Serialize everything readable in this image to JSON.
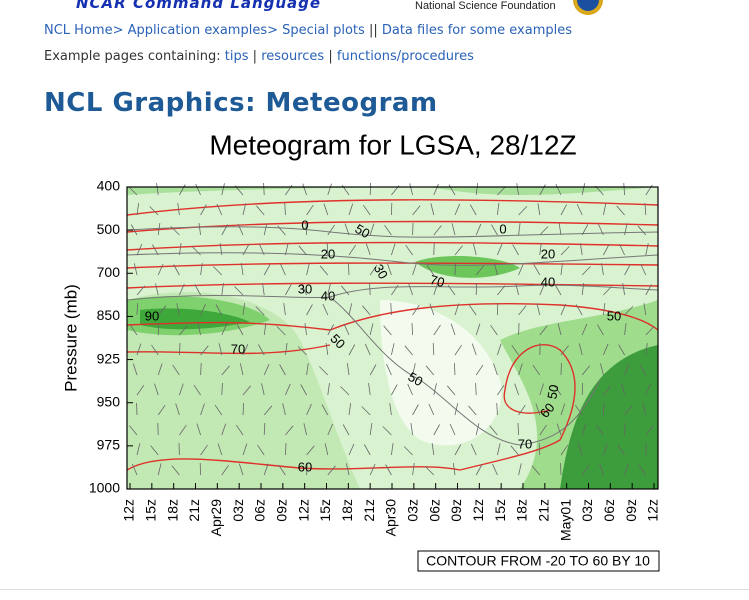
{
  "header": {
    "brand": "NCAR Command Language",
    "sponsor": "National Science Foundation"
  },
  "nav": {
    "links": [
      "NCL Home>",
      "Application examples>",
      "Special plots"
    ],
    "separator": "||",
    "data_link": "Data files for some examples"
  },
  "examples": {
    "label": "Example pages containing:",
    "links": [
      "tips",
      "resources",
      "functions/procedures"
    ],
    "separator": "|"
  },
  "title": "NCL Graphics: Meteogram",
  "figure": {
    "title": "Meteogram for LGSA, 28/12Z",
    "y_label": "Pressure (mb)",
    "y_levels": [
      "400",
      "500",
      "700",
      "850",
      "925",
      "950",
      "975",
      "1000"
    ],
    "x_labels": [
      "12z",
      "15z",
      "18z",
      "21z",
      "Apr29",
      "03z",
      "06z",
      "09z",
      "12z",
      "15z",
      "18z",
      "21z",
      "Apr30",
      "03z",
      "06z",
      "09z",
      "12z",
      "15z",
      "18z",
      "21z",
      "May01",
      "03z",
      "06z",
      "09z",
      "12z"
    ],
    "contour_labels": [
      "0",
      "50",
      "20",
      "30",
      "30",
      "40",
      "90",
      "70",
      "50",
      "50",
      "70",
      "0",
      "20",
      "40",
      "50",
      "70",
      "60",
      "50",
      "60"
    ],
    "contour_note": "CONTOUR FROM -20 TO 60 BY 10"
  }
}
